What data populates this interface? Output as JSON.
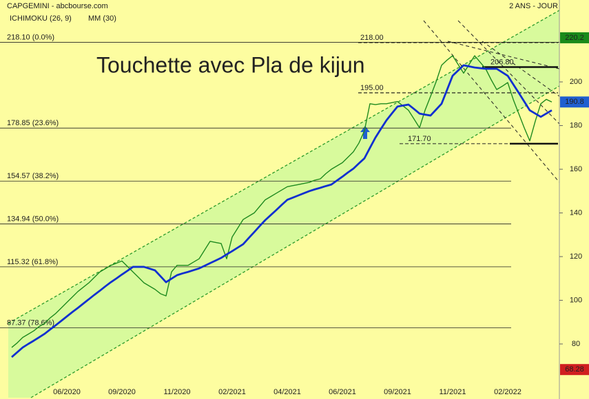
{
  "chart_data": {
    "type": "line",
    "title": "Touchette avec Pla de kijun",
    "subtitle": "2 ANS - JOUR",
    "indicator": "ICHIMOKU (26, 9)",
    "categories": [
      null,
      null,
      null,
      null,
      null,
      null,
      null,
      null,
      null,
      null,
      "06/2020",
      null,
      null,
      null,
      null,
      null,
      null,
      null,
      null,
      null,
      "09/2020",
      null,
      null,
      null,
      null,
      null,
      null,
      null,
      null,
      null,
      "11/2020",
      null,
      null,
      null,
      null,
      null,
      null,
      null,
      null,
      null,
      "02/2021",
      null,
      null,
      null,
      null,
      null,
      null,
      null,
      null,
      null,
      "04/2021",
      null,
      null,
      null,
      null,
      null,
      null,
      null,
      null,
      null,
      "06/2021",
      null,
      null,
      null,
      null,
      null,
      null,
      null,
      null,
      null,
      "09/2021",
      null,
      null,
      null,
      null,
      null,
      null,
      null,
      null,
      null,
      "11/2021",
      null,
      null,
      null,
      null,
      null,
      null,
      null,
      null,
      null,
      "02/2022",
      null,
      null,
      null,
      null,
      null,
      null,
      null,
      null
    ],
    "series": [
      {
        "name": "CAPGEMINI - abcbourse.com",
        "color": "#1f8a1f",
        "values": [
          78.4,
          80.5,
          83,
          84.5,
          86,
          88,
          89.5,
          92,
          94,
          96.5,
          99,
          101.5,
          104,
          106,
          108,
          110.5,
          113,
          114.5,
          116,
          117,
          118,
          115.5,
          113,
          110.5,
          108,
          106.5,
          105,
          103,
          102,
          113,
          116,
          116,
          116,
          117.5,
          119,
          123,
          127,
          126.5,
          126,
          119,
          129,
          133,
          137,
          138.5,
          140,
          143,
          146,
          147.5,
          149,
          150.5,
          152,
          152.5,
          153,
          153.5,
          154,
          155,
          155.6,
          158,
          160,
          161.5,
          163,
          165.5,
          168,
          172,
          177.6,
          190,
          189.6,
          190,
          190,
          190.5,
          191,
          189,
          187,
          183,
          179,
          187,
          193.4,
          200,
          207.6,
          210,
          212,
          208,
          204,
          208,
          212,
          209,
          206,
          201,
          196.5,
          198,
          199.7,
          192,
          185.5,
          179,
          173,
          182,
          190,
          192,
          190.8
        ]
      },
      {
        "name": "MM (30)",
        "color": "#1030d0",
        "values": [
          74,
          76.2,
          78.4,
          80,
          81.5,
          83.1,
          84.7,
          86.7,
          88.6,
          90.6,
          92.6,
          94.6,
          96.5,
          98.5,
          100.5,
          102.5,
          104.4,
          106.4,
          108.3,
          110,
          111.8,
          113.5,
          115.3,
          115.3,
          115.3,
          114.5,
          113.7,
          111,
          108.3,
          109.9,
          111.5,
          112.3,
          113,
          113.8,
          114.6,
          115.8,
          117,
          118.2,
          119.4,
          121,
          122.5,
          124.1,
          125.7,
          128.5,
          131.2,
          134,
          136.7,
          139,
          141.3,
          143.7,
          146,
          147,
          148,
          149,
          150,
          150.8,
          151.5,
          152.3,
          153,
          154.8,
          156.6,
          158.5,
          160.3,
          162.7,
          165,
          169.8,
          174.5,
          178.5,
          182.4,
          185.6,
          188.7,
          189.2,
          189.6,
          187.6,
          185.5,
          185,
          184.6,
          187.3,
          190,
          196.4,
          202.8,
          205.2,
          207.6,
          207.1,
          206.6,
          206.3,
          206,
          206,
          206,
          204.4,
          202.8,
          198.9,
          195,
          191,
          187,
          185.5,
          184,
          185.5,
          187
        ]
      }
    ],
    "ylim": [
      54.8,
      237.5
    ],
    "yticks": [
      80,
      100,
      120,
      140,
      160,
      180,
      200
    ],
    "fib_levels": [
      {
        "value": 218.1,
        "label": "218.10  (0.0%)"
      },
      {
        "value": 178.85,
        "label": "178.85  (23.6%)"
      },
      {
        "value": 154.57,
        "label": "154.57  (38.2%)"
      },
      {
        "value": 134.94,
        "label": "134.94  (50.0%)"
      },
      {
        "value": 115.32,
        "label": "115.32  (61.8%)"
      },
      {
        "value": 87.37,
        "label": "87.37  (78.6%)"
      }
    ],
    "levels": [
      {
        "value": 218,
        "label": "218.00",
        "style": "dashed"
      },
      {
        "value": 195,
        "label": "195.00",
        "style": "dashed"
      },
      {
        "value": 206.8,
        "label": "206.80",
        "style": "thick"
      },
      {
        "value": 171.7,
        "label": "171.70",
        "style": "thick"
      }
    ],
    "markers": [
      {
        "value": 220.2,
        "color": "#1a8a1a"
      },
      {
        "value": 190.8,
        "color": "#1f5fd0"
      },
      {
        "value": 68.28,
        "color": "#d01f1f"
      }
    ]
  }
}
